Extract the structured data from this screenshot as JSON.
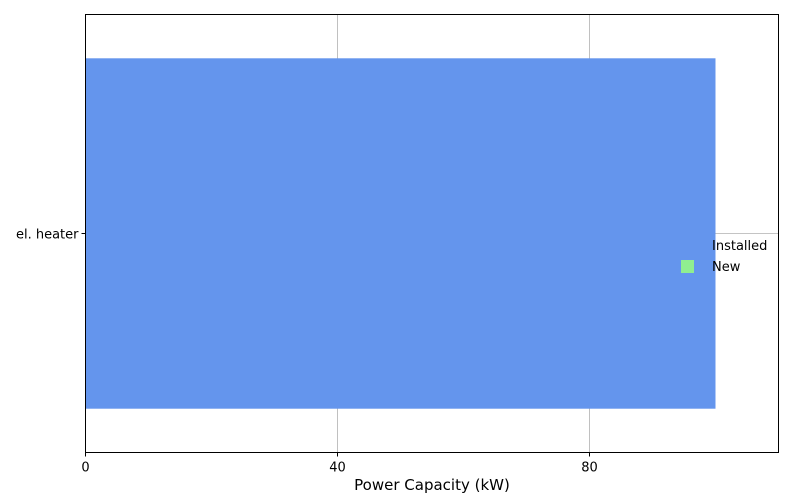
{
  "chart_data": {
    "type": "bar",
    "orientation": "horizontal",
    "categories": [
      "el. heater"
    ],
    "series": [
      {
        "name": "Installed",
        "values": [
          100
        ],
        "color": "#6495ED"
      },
      {
        "name": "New",
        "values": [
          0
        ],
        "color": "#90EE90"
      }
    ],
    "xlabel": "Power Capacity (kW)",
    "ylabel": "",
    "xlim": [
      0,
      110
    ],
    "xticks": [
      0,
      40,
      80
    ],
    "grid": true,
    "legend": {
      "position": "right"
    }
  }
}
